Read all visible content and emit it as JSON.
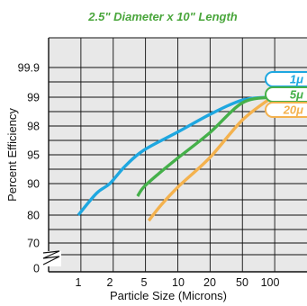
{
  "chart_data": {
    "type": "line",
    "title": "2.5\" Diameter x 10\" Length",
    "xlabel": "Particle Size (Microns)",
    "ylabel": "Percent Efficiency",
    "x_ticks": [
      "1",
      "2",
      "5",
      "10",
      "20",
      "50",
      "100"
    ],
    "y_ticks": [
      "0",
      "70",
      "80",
      "90",
      "95",
      "98",
      "99",
      "99.9"
    ],
    "y_scale": "nonlinear (broken axis)",
    "grid": true,
    "legend_placement": "right",
    "colors": {
      "title": "#4aa63c",
      "plot_background": "#e8e8e8",
      "grid": "#111111"
    },
    "series": [
      {
        "name": "1μ",
        "color": "#1ea7e0",
        "x": [
          1,
          1.5,
          2,
          3,
          5,
          10,
          20,
          50,
          100
        ],
        "y": [
          80,
          87,
          90,
          93,
          95.5,
          97.4,
          98.4,
          98.9,
          99
        ]
      },
      {
        "name": "5μ",
        "color": "#45b04a",
        "x": [
          4.2,
          5,
          7,
          10,
          20,
          50,
          100
        ],
        "y": [
          86,
          89,
          92,
          94.5,
          97.3,
          98.8,
          99
        ]
      },
      {
        "name": "20μ",
        "color": "#f4b24e",
        "x": [
          5.5,
          7,
          10,
          20,
          50,
          100
        ],
        "y": [
          78,
          83,
          89,
          94.5,
          98.2,
          98.95
        ]
      }
    ]
  }
}
